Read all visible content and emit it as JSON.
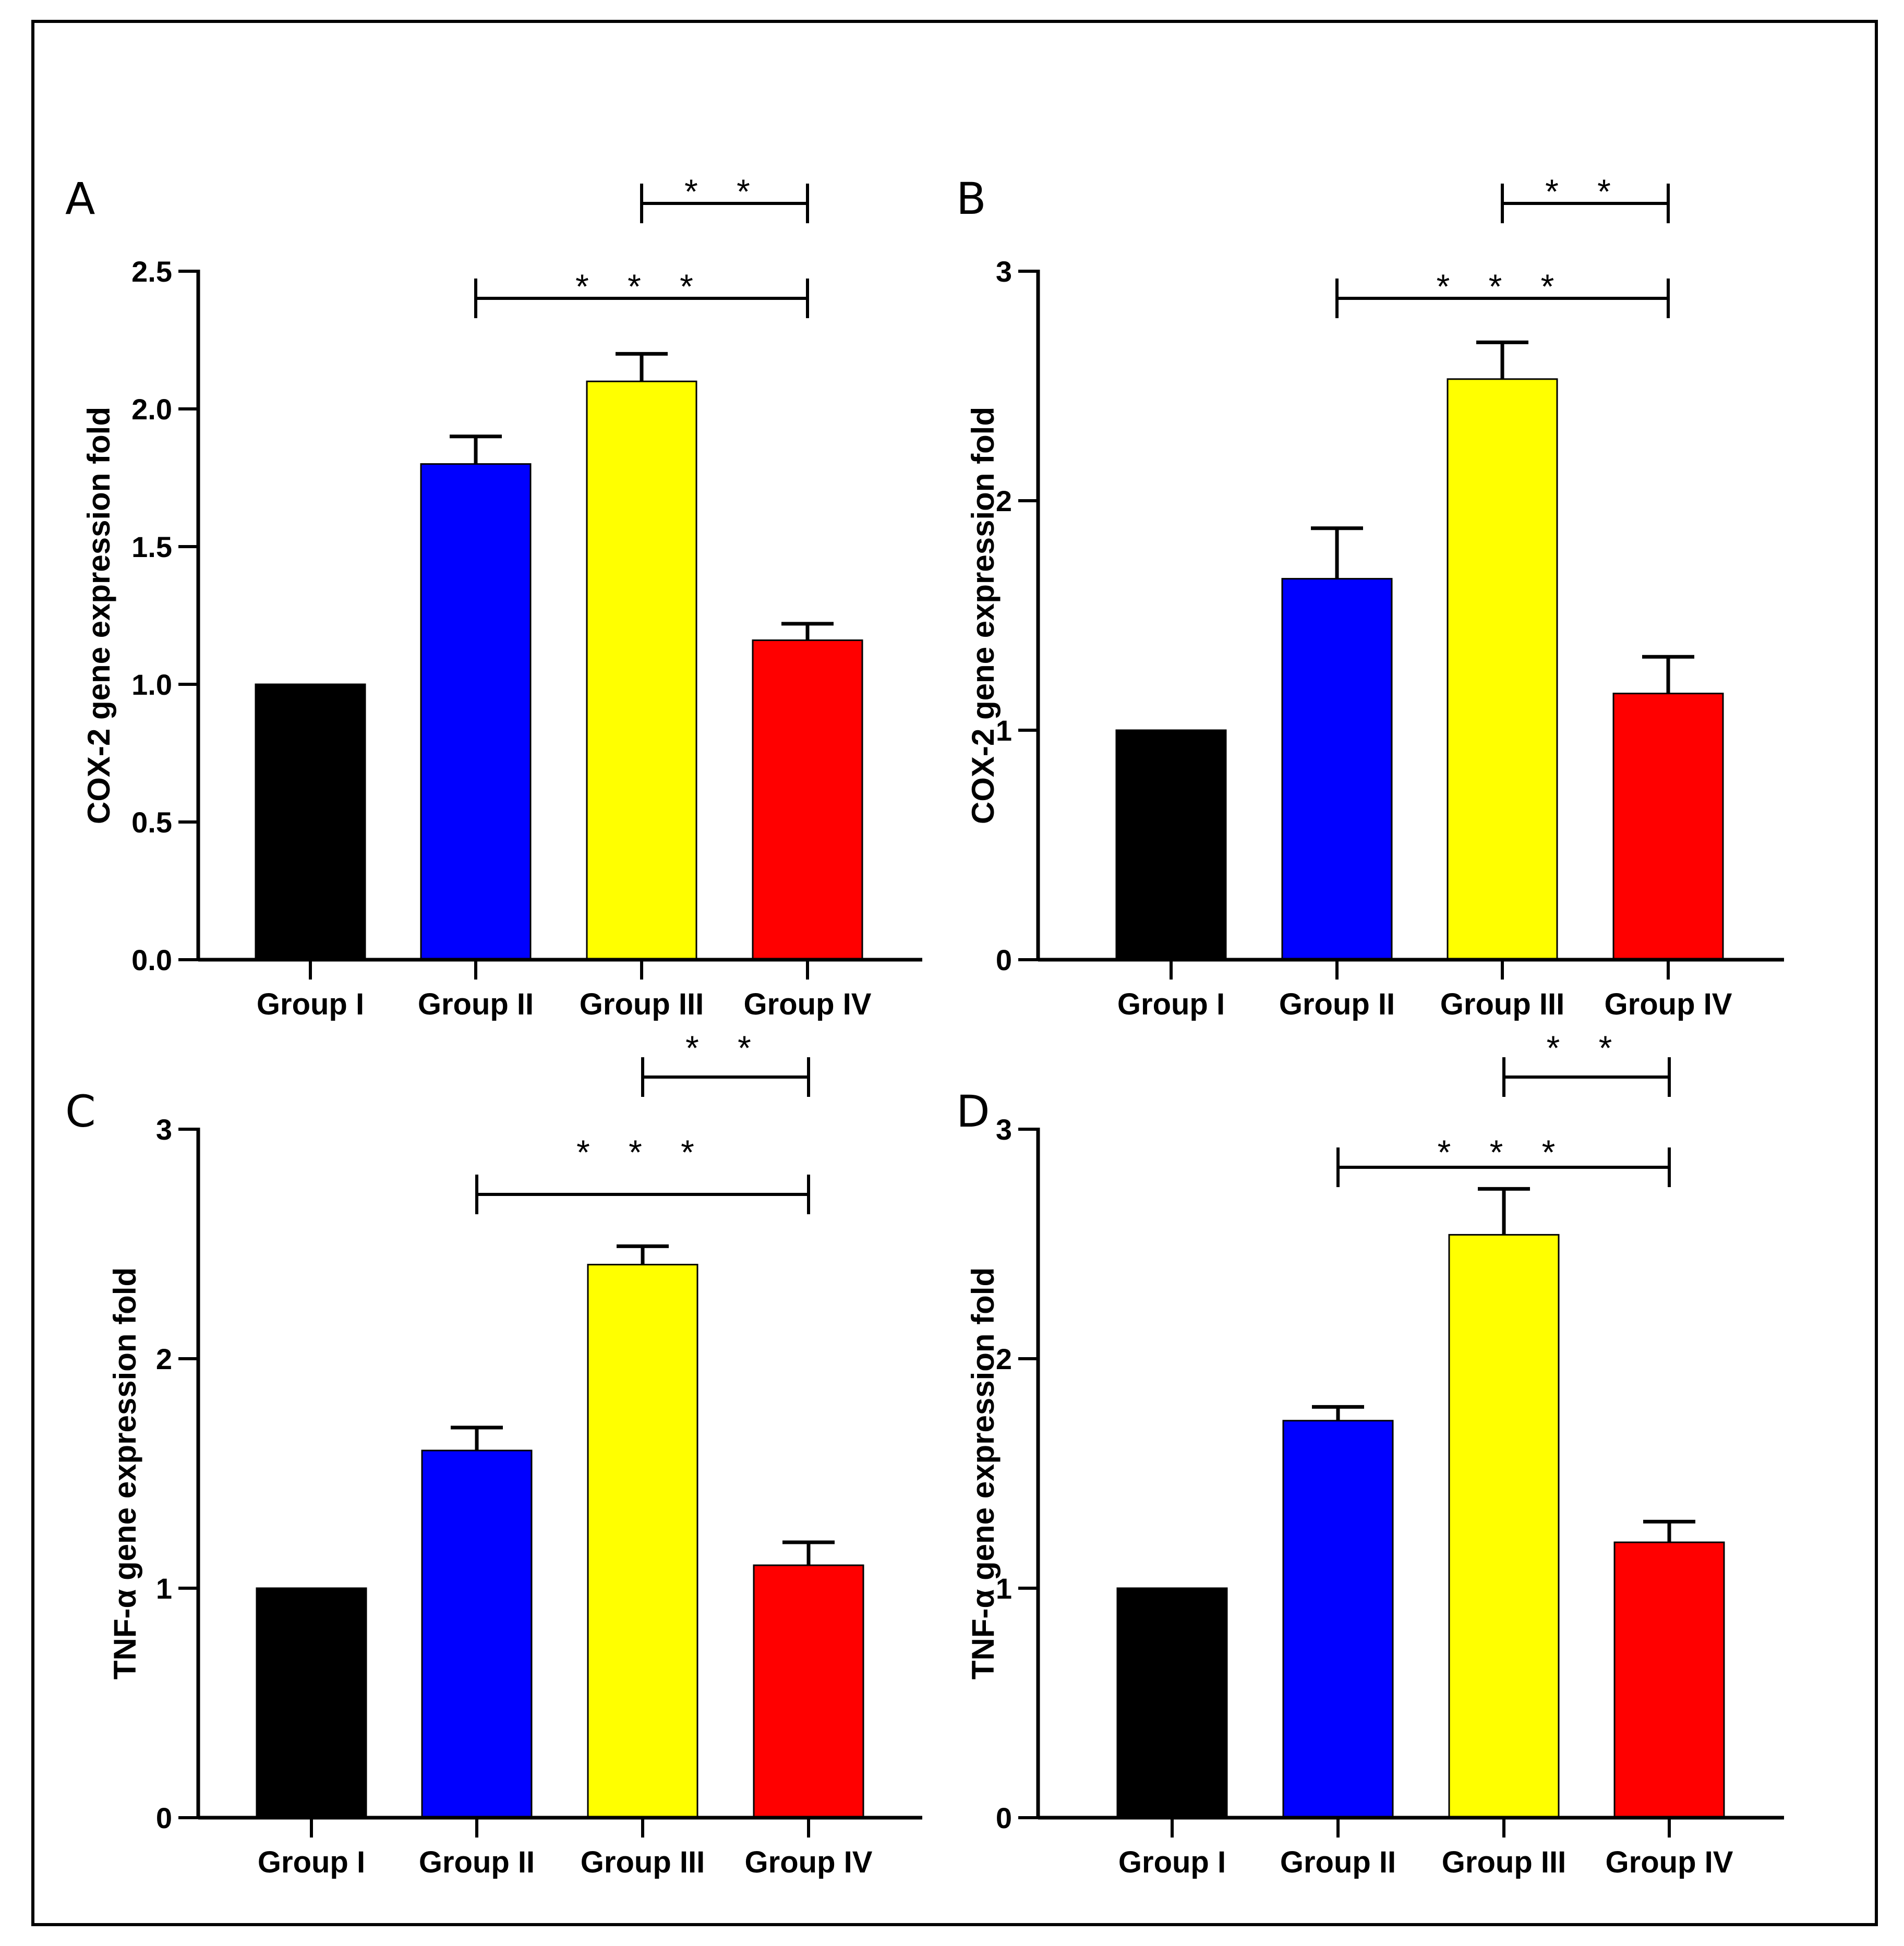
{
  "chart_data": [
    {
      "type": "bar",
      "panel": "A",
      "categories": [
        "Group I",
        "Group II",
        "Group III",
        "Group IV"
      ],
      "values": [
        1.0,
        1.8,
        2.1,
        1.16
      ],
      "errors": [
        0.0,
        0.1,
        0.1,
        0.06
      ],
      "colors": [
        "#000000",
        "#0000ff",
        "#ffff00",
        "#ff0000"
      ],
      "ylabel": "COX-2 gene expression fold",
      "ylim": [
        0,
        2.5
      ],
      "yticks": [
        0.0,
        0.5,
        1.0,
        1.5,
        2.0,
        2.5
      ],
      "ytick_labels": [
        "0.0",
        "0.5",
        "1.0",
        "1.5",
        "2.0",
        "2.5"
      ],
      "significance": [
        {
          "from": "Group III",
          "to": "Group IV",
          "label": "* *"
        },
        {
          "from": "Group II",
          "to": "Group IV",
          "label": "* * *"
        }
      ]
    },
    {
      "type": "bar",
      "panel": "B",
      "categories": [
        "Group I",
        "Group II",
        "Group III",
        "Group IV"
      ],
      "values": [
        1.0,
        1.66,
        2.53,
        1.16
      ],
      "errors": [
        0.0,
        0.22,
        0.16,
        0.16
      ],
      "colors": [
        "#000000",
        "#0000ff",
        "#ffff00",
        "#ff0000"
      ],
      "ylabel": "COX-2 gene expression fold",
      "ylim": [
        0,
        3
      ],
      "yticks": [
        0,
        1,
        2,
        3
      ],
      "ytick_labels": [
        "0",
        "1",
        "2",
        "3"
      ],
      "significance": [
        {
          "from": "Group III",
          "to": "Group IV",
          "label": "* *"
        },
        {
          "from": "Group II",
          "to": "Group IV",
          "label": "* * *"
        }
      ]
    },
    {
      "type": "bar",
      "panel": "C",
      "categories": [
        "Group I",
        "Group II",
        "Group III",
        "Group IV"
      ],
      "values": [
        1.0,
        1.6,
        2.41,
        1.1
      ],
      "errors": [
        0.0,
        0.1,
        0.08,
        0.1
      ],
      "colors": [
        "#000000",
        "#0000ff",
        "#ffff00",
        "#ff0000"
      ],
      "ylabel": "TNF-α gene expression fold",
      "ylim": [
        0,
        3
      ],
      "yticks": [
        0,
        1,
        2,
        3
      ],
      "ytick_labels": [
        "0",
        "1",
        "2",
        "3"
      ],
      "significance": [
        {
          "from": "Group III",
          "to": "Group IV",
          "label": "* *"
        },
        {
          "from": "Group II",
          "to": "Group IV",
          "label": "* * *"
        }
      ]
    },
    {
      "type": "bar",
      "panel": "D",
      "categories": [
        "Group I",
        "Group II",
        "Group III",
        "Group IV"
      ],
      "values": [
        1.0,
        1.73,
        2.54,
        1.2
      ],
      "errors": [
        0.0,
        0.06,
        0.2,
        0.09
      ],
      "colors": [
        "#000000",
        "#0000ff",
        "#ffff00",
        "#ff0000"
      ],
      "ylabel": "TNF-α gene expression fold",
      "ylim": [
        0,
        3
      ],
      "yticks": [
        0,
        1,
        2,
        3
      ],
      "ytick_labels": [
        "0",
        "1",
        "2",
        "3"
      ],
      "significance": [
        {
          "from": "Group III",
          "to": "Group IV",
          "label": "* *"
        },
        {
          "from": "Group II",
          "to": "Group IV",
          "label": "* * *"
        }
      ]
    }
  ]
}
